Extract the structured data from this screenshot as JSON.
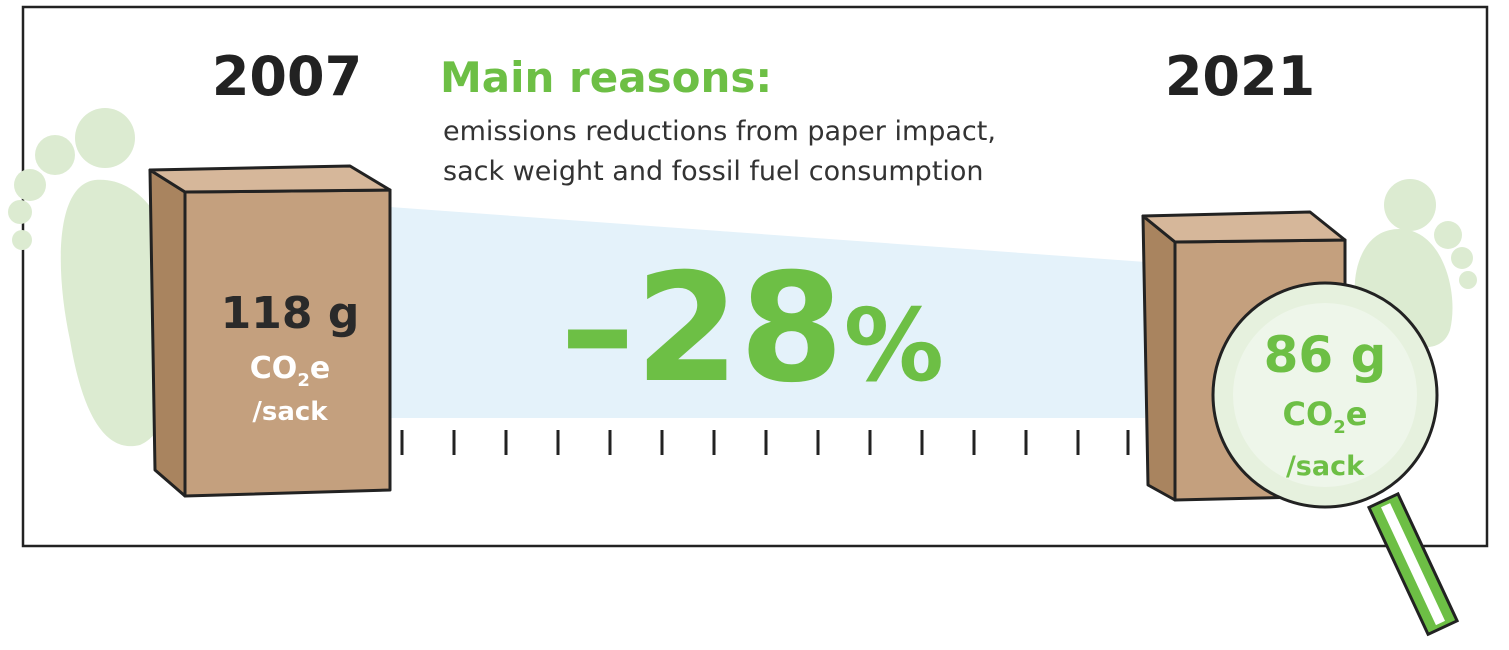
{
  "left": {
    "year": "2007",
    "amount": "118 g",
    "unit_main": "CO",
    "unit_sub": "2",
    "unit_end": "e",
    "per": "/sack"
  },
  "heading": {
    "title": "Main reasons:",
    "lines": [
      "emissions reductions from paper impact,",
      "sack weight and fossil fuel consumption"
    ]
  },
  "change": {
    "number": "–28",
    "unit": "%"
  },
  "right": {
    "year": "2021",
    "amount": "86 g",
    "unit_main": "CO",
    "unit_sub": "2",
    "unit_end": "e",
    "per": "/sack"
  }
}
